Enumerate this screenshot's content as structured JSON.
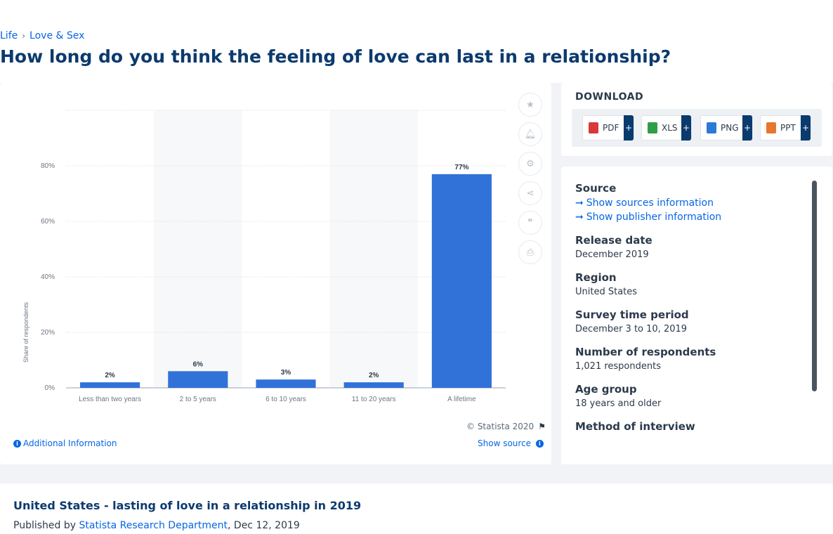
{
  "breadcrumb": {
    "items": [
      "Life",
      "Love & Sex"
    ],
    "separator": "›"
  },
  "page_title": "How long do you think the feeling of love can last in a relationship?",
  "chart_data": {
    "type": "bar",
    "categories": [
      "Less than two years",
      "2 to 5 years",
      "6 to 10 years",
      "11 to 20 years",
      "A lifetime"
    ],
    "values": [
      2,
      6,
      3,
      2,
      77
    ],
    "value_labels": [
      "2%",
      "6%",
      "3%",
      "2%",
      "77%"
    ],
    "ylabel": "Share of respondents",
    "xlabel": "",
    "ylim": [
      0,
      100
    ],
    "y_ticks": [
      "0%",
      "20%",
      "40%",
      "60%",
      "80%"
    ],
    "y_tick_values": [
      0,
      20,
      40,
      60,
      80
    ],
    "bar_color": "#3172d9",
    "grid": true
  },
  "chart_footer": {
    "credit": "© Statista 2020",
    "additional_info": "Additional Information",
    "show_source": "Show source"
  },
  "download": {
    "title": "DOWNLOAD",
    "buttons": [
      {
        "label": "PDF",
        "plus": "+",
        "icon": "pdf-file-icon",
        "color": "#d9383a"
      },
      {
        "label": "XLS",
        "plus": "+",
        "icon": "xls-file-icon",
        "color": "#2f9e44"
      },
      {
        "label": "PNG",
        "plus": "+",
        "icon": "png-file-icon",
        "color": "#2b7bd6"
      },
      {
        "label": "PPT",
        "plus": "+",
        "icon": "ppt-file-icon",
        "color": "#e8772e"
      }
    ]
  },
  "info": {
    "source_label": "Source",
    "show_sources": "Show sources information",
    "show_publisher": "Show publisher information",
    "release_label": "Release date",
    "release_value": "December 2019",
    "region_label": "Region",
    "region_value": "United States",
    "survey_label": "Survey time period",
    "survey_value": "December 3 to 10, 2019",
    "respondents_label": "Number of respondents",
    "respondents_value": "1,021 respondents",
    "age_label": "Age group",
    "age_value": "18 years and older",
    "method_label": "Method of interview"
  },
  "bottom": {
    "title": "United States - lasting of love in a relationship in 2019",
    "published_prefix": "Published by",
    "publisher": "Statista Research Department",
    "date": ", Dec 12, 2019"
  }
}
